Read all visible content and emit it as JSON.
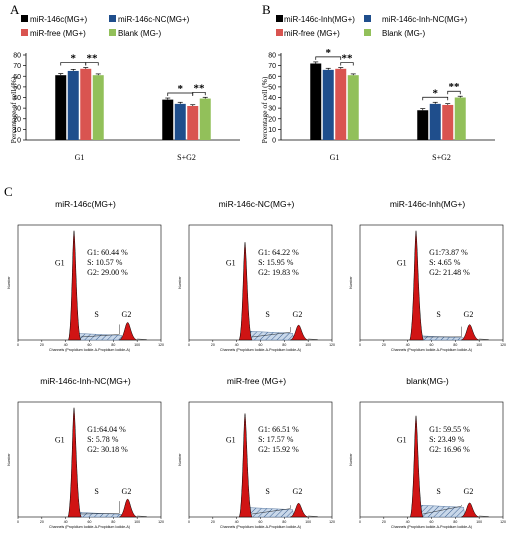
{
  "panels": {
    "A": "A",
    "B": "B",
    "C": "C"
  },
  "colors": {
    "black": "#000000",
    "blue": "#1f4e8c",
    "red": "#d95450",
    "green": "#92c05a",
    "peak_fill": "#d01414",
    "hatch_fill": "#9bb6d6"
  },
  "chart_data": [
    {
      "type": "bar",
      "panel": "A",
      "ylabel": "Percentage of cell (%)",
      "ylim": [
        0,
        80
      ],
      "yticks": [
        "0",
        "10",
        "20",
        "30",
        "40",
        "50",
        "60",
        "70",
        "80"
      ],
      "categories": [
        "G1",
        "S+G2"
      ],
      "series": [
        {
          "name": "miR-146c(MG+)",
          "color": "#000000",
          "values": [
            61,
            38
          ],
          "errors": [
            1.5,
            1.5
          ]
        },
        {
          "name": "miR-146c-NC(MG+)",
          "color": "#1f4e8c",
          "values": [
            65,
            34
          ],
          "errors": [
            1.5,
            1.5
          ]
        },
        {
          "name": "miR-free (MG+)",
          "color": "#d95450",
          "values": [
            67,
            32
          ],
          "errors": [
            1.2,
            1.2
          ]
        },
        {
          "name": "Blank (MG-)",
          "color": "#92c05a",
          "values": [
            61,
            39
          ],
          "errors": [
            1.2,
            1.2
          ]
        }
      ],
      "significance": [
        {
          "label": "*",
          "category": 0,
          "from": 0,
          "to": 2
        },
        {
          "label": "**",
          "category": 0,
          "from": 2,
          "to": 3
        },
        {
          "label": "*",
          "category": 1,
          "from": 0,
          "to": 2
        },
        {
          "label": "**",
          "category": 1,
          "from": 2,
          "to": 3
        }
      ]
    },
    {
      "type": "bar",
      "panel": "B",
      "ylabel": "Percentage of cell (%)",
      "ylim": [
        0,
        80
      ],
      "yticks": [
        "0",
        "10",
        "20",
        "30",
        "40",
        "50",
        "60",
        "70",
        "80"
      ],
      "categories": [
        "G1",
        "S+G2"
      ],
      "series": [
        {
          "name": "miR-146c-Inh(MG+)",
          "color": "#000000",
          "values": [
            72,
            28
          ],
          "errors": [
            1.5,
            1.5
          ]
        },
        {
          "name": "miR-146c-Inh-NC(MG+)",
          "color": "#1f4e8c",
          "values": [
            66,
            34
          ],
          "errors": [
            1.5,
            1.5
          ]
        },
        {
          "name": "miR-free (MG+)",
          "color": "#d95450",
          "values": [
            67,
            33
          ],
          "errors": [
            1.2,
            1.2
          ]
        },
        {
          "name": "Blank (MG-)",
          "color": "#92c05a",
          "values": [
            61,
            40
          ],
          "errors": [
            1.2,
            1.2
          ]
        }
      ],
      "significance": [
        {
          "label": "*",
          "category": 0,
          "from": 0,
          "to": 2
        },
        {
          "label": "**",
          "category": 0,
          "from": 2,
          "to": 3
        },
        {
          "label": "*",
          "category": 1,
          "from": 0,
          "to": 2
        },
        {
          "label": "**",
          "category": 1,
          "from": 2,
          "to": 3
        }
      ]
    },
    {
      "type": "area",
      "panel": "C",
      "xlabel": "Channels (Propidium Iodide-A-Propidium Iodide-A)",
      "ylabel": "Number",
      "xticks": [
        "0",
        "20",
        "40",
        "60",
        "80",
        "100",
        "120"
      ],
      "histograms": [
        {
          "title": "miR-146c(MG+)",
          "stats": [
            "G1: 60.44 %",
            "S:  10.57 %",
            "G2: 29.00 %"
          ],
          "g1": 60.44,
          "s": 10.57,
          "g2": 29.0,
          "labels": {
            "g1": "G1",
            "s": "S",
            "g2": "G2"
          }
        },
        {
          "title": "miR-146c-NC(MG+)",
          "stats": [
            "G1: 64.22  %",
            "S:  15.95 %",
            "G2: 19.83 %"
          ],
          "g1": 64.22,
          "s": 15.95,
          "g2": 19.83,
          "labels": {
            "g1": "G1",
            "s": "S",
            "g2": "G2"
          }
        },
        {
          "title": "miR-146c-Inh(MG+)",
          "stats": [
            "G1:73.87 %",
            "S:    4.65 %",
            "G2:  21.48 %"
          ],
          "g1": 73.87,
          "s": 4.65,
          "g2": 21.48,
          "labels": {
            "g1": "G1",
            "s": "S",
            "g2": "G2"
          }
        },
        {
          "title": "miR-146c-Inh-NC(MG+)",
          "stats": [
            "G1:64.04 %",
            "S:    5.78 %",
            "G2: 30.18 %"
          ],
          "g1": 64.04,
          "s": 5.78,
          "g2": 30.18,
          "labels": {
            "g1": "G1",
            "s": "S",
            "g2": "G2"
          }
        },
        {
          "title": "miR-free (MG+)",
          "stats": [
            "G1: 66.51 %",
            "S:  17.57 %",
            "G2: 15.92 %"
          ],
          "g1": 66.51,
          "s": 17.57,
          "g2": 15.92,
          "labels": {
            "g1": "G1",
            "s": "S",
            "g2": "G2"
          }
        },
        {
          "title": "blank(MG-)",
          "stats": [
            "G1:  59.55 %",
            "S:    23.49 %",
            "G2:  16.96 %"
          ],
          "g1": 59.55,
          "s": 23.49,
          "g2": 16.96,
          "labels": {
            "g1": "G1",
            "s": "S",
            "g2": "G2"
          }
        }
      ]
    }
  ]
}
